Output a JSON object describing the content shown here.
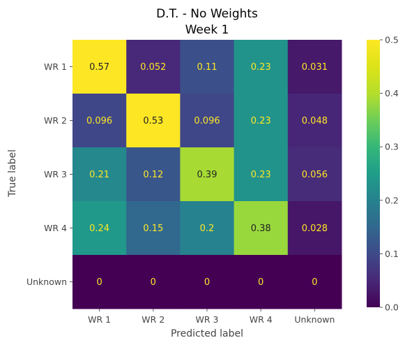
{
  "chart_data": {
    "type": "heatmap",
    "title": "D.T. - No Weights",
    "subtitle": "Week 1",
    "xlabel": "Predicted label",
    "ylabel": "True label",
    "x_categories": [
      "WR 1",
      "WR 2",
      "WR 3",
      "WR 4",
      "Unknown"
    ],
    "y_categories": [
      "WR 1",
      "WR 2",
      "WR 3",
      "WR 4",
      "Unknown"
    ],
    "values": [
      [
        0.57,
        0.052,
        0.11,
        0.23,
        0.031
      ],
      [
        0.096,
        0.53,
        0.096,
        0.23,
        0.048
      ],
      [
        0.21,
        0.12,
        0.39,
        0.23,
        0.056
      ],
      [
        0.24,
        0.15,
        0.2,
        0.38,
        0.028
      ],
      [
        0,
        0,
        0,
        0,
        0
      ]
    ],
    "value_labels": [
      [
        "0.57",
        "0.052",
        "0.11",
        "0.23",
        "0.031"
      ],
      [
        "0.096",
        "0.53",
        "0.096",
        "0.23",
        "0.048"
      ],
      [
        "0.21",
        "0.12",
        "0.39",
        "0.23",
        "0.056"
      ],
      [
        "0.24",
        "0.15",
        "0.2",
        "0.38",
        "0.028"
      ],
      [
        "0",
        "0",
        "0",
        "0",
        "0"
      ]
    ],
    "colorbar": {
      "range": [
        0.0,
        0.5
      ],
      "ticks": [
        0.0,
        0.1,
        0.2,
        0.3,
        0.4,
        0.5
      ],
      "tick_labels": [
        "0.0",
        "0.1",
        "0.2",
        "0.3",
        "0.4",
        "0.5"
      ],
      "colormap": "viridis"
    },
    "text_colors": {
      "light": "#fde725",
      "dark": "#222222"
    }
  }
}
